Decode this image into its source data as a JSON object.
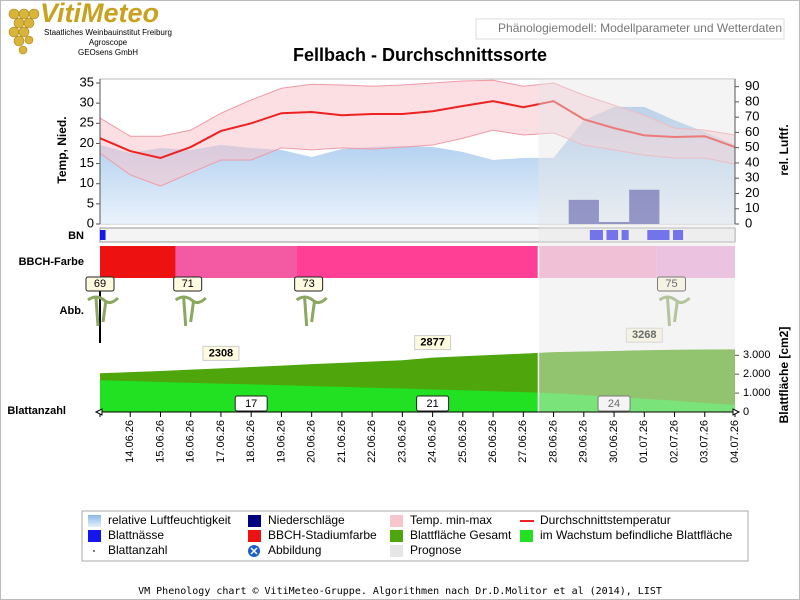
{
  "header": {
    "brand": "VitiMeteo",
    "institutions": [
      "Staatliches Weinbauinstitut Freiburg",
      "Agroscope",
      "GEOsens GmbH"
    ],
    "page_title": "Phänologiemodell: Modellparameter und Wetterdaten"
  },
  "chart_data": {
    "type": "phenology",
    "title": "Fellbach - Durchschnittssorte",
    "categories": [
      null,
      "14.06.26",
      "15.06.26",
      "16.06.26",
      "17.06.26",
      "18.06.26",
      "19.06.26",
      "20.06.26",
      "21.06.26",
      "22.06.26",
      "23.06.26",
      "24.06.26",
      "25.06.26",
      "26.06.26",
      "27.06.26",
      "28.06.26",
      "29.06.26",
      "30.06.26",
      "01.07.26",
      "02.07.26",
      "03.07.26",
      "04.07.26"
    ],
    "ylim": [
      0,
      36
    ],
    "yticks": [
      0,
      5,
      10,
      15,
      20,
      25,
      30,
      35
    ],
    "y_label": "Temp, Nied.",
    "y2lim": [
      0,
      95
    ],
    "y2ticks": [
      0,
      10,
      20,
      30,
      40,
      50,
      60,
      70,
      80,
      90
    ],
    "y2_label": "rel. Luftf.",
    "y3lim": [
      0,
      3650
    ],
    "y3ticks": [
      0,
      {
        "value": 1000,
        "label": "1.000"
      },
      {
        "value": 2000,
        "label": "2.000"
      },
      {
        "value": 3000,
        "label": "3.000"
      }
    ],
    "y3_label": "Blattfläche [cm2]",
    "row_labels": {
      "bn": "BN",
      "bbch": "BBCH-Farbe",
      "abb": "Abb.",
      "leaves": "Blattanzahl"
    },
    "series": [
      {
        "name": "relative Luftfeuchtigkeit",
        "kind": "area",
        "axis": "y2",
        "color": "#a3c7ec",
        "values": [
          51.8,
          46.5,
          49.8,
          48.5,
          51.8,
          49.8,
          48.5,
          43.9,
          49.1,
          50.5,
          51,
          50.5,
          47.2,
          41.9,
          43.3,
          43.3,
          68,
          76.7,
          76.7,
          68,
          60.3,
          51.8
        ]
      },
      {
        "name": "Niederschläge",
        "kind": "bar",
        "color": "#000080",
        "values": [
          0,
          0,
          0,
          0,
          0,
          0,
          0,
          0,
          0,
          0,
          0,
          0,
          0,
          0,
          0,
          0,
          6,
          0.5,
          8.5,
          0,
          0,
          0
        ]
      },
      {
        "name": "Temp. min-max",
        "kind": "band",
        "color": "#f7c5cc",
        "low": [
          17.6,
          12.2,
          9.4,
          12.7,
          15.9,
          15.9,
          18.9,
          18.4,
          18.9,
          18.6,
          19.1,
          19.6,
          21.3,
          23.3,
          22.1,
          22.6,
          19.6,
          18.4,
          17.1,
          16.4,
          16.4,
          14.9
        ],
        "high": [
          26.3,
          21.8,
          21.8,
          23.3,
          27.5,
          30.8,
          33.7,
          34.7,
          34.5,
          34.2,
          34.5,
          35,
          35.5,
          35.7,
          34.2,
          35,
          32,
          29.5,
          27,
          23.8,
          23.3,
          22.1
        ]
      },
      {
        "name": "Durchschnittstemperatur",
        "kind": "line",
        "color": "#ee2222",
        "values": [
          21.3,
          18.1,
          16.4,
          19.1,
          23.1,
          25,
          27.5,
          27.8,
          27,
          27.3,
          27.3,
          28,
          29.3,
          30.5,
          29,
          30.5,
          26,
          23.8,
          22,
          21.6,
          21.8,
          19.1
        ]
      },
      {
        "name": "Blattnässe",
        "kind": "periods",
        "color": "#1515ee",
        "periods": [
          [
            0,
            0.15
          ],
          [
            16.2,
            16.6
          ],
          [
            16.75,
            17.1
          ],
          [
            17.25,
            17.45
          ],
          [
            18.1,
            18.8
          ],
          [
            18.95,
            19.25
          ]
        ]
      },
      {
        "name": "BBCH-Stadiumfarbe",
        "kind": "segments",
        "color": "#ee1111",
        "segments": [
          {
            "from": 0,
            "to": 2.5,
            "color": "#ee1111"
          },
          {
            "from": 2.5,
            "to": 6.5,
            "color": "#f45aa4"
          },
          {
            "from": 6.5,
            "to": 14.5,
            "color": "#ff3f96"
          },
          {
            "from": 14.5,
            "to": 18.4,
            "color": "#f7a0c9"
          },
          {
            "from": 18.4,
            "to": 21,
            "color": "#f0a4dc"
          }
        ]
      },
      {
        "name": "Blattfläche Gesamt",
        "kind": "area",
        "axis": "y3",
        "color": "#4ea60c",
        "values": [
          2050,
          2110,
          2170,
          2240,
          2308,
          2380,
          2450,
          2530,
          2600,
          2670,
          2740,
          2877,
          2950,
          3020,
          3090,
          3170,
          3200,
          3230,
          3268,
          3290,
          3305,
          3316
        ],
        "value_labels": [
          null,
          null,
          null,
          null,
          "2308",
          null,
          null,
          null,
          null,
          null,
          null,
          "2877",
          null,
          null,
          null,
          null,
          null,
          null,
          "3268",
          null,
          null,
          null
        ]
      },
      {
        "name": "im Wachstum befindliche Blattfläche",
        "kind": "area",
        "axis": "y3",
        "color": "#22e022",
        "values": [
          1680,
          1640,
          1590,
          1540,
          1500,
          1460,
          1420,
          1370,
          1330,
          1280,
          1240,
          1190,
          1150,
          1100,
          1050,
          990,
          900,
          800,
          700,
          600,
          480,
          370
        ]
      },
      {
        "name": "Blattanzahl",
        "kind": "labels",
        "color": "#555555",
        "x": [
          5,
          11,
          17
        ],
        "values": [
          17,
          21,
          24
        ]
      },
      {
        "name": "Abbildung",
        "kind": "stages",
        "color": "#1a5fd0",
        "x": [
          0,
          2.9,
          6.9,
          18.9
        ],
        "values": [
          69,
          71,
          73,
          75
        ]
      },
      {
        "name": "Prognose",
        "kind": "forecast",
        "color": "#e6e6e6",
        "from": 14.5
      }
    ]
  },
  "footer": "VM Phenology chart © VitiMeteo-Gruppe. Algorithmen nach Dr.D.Molitor et al (2014), LIST"
}
